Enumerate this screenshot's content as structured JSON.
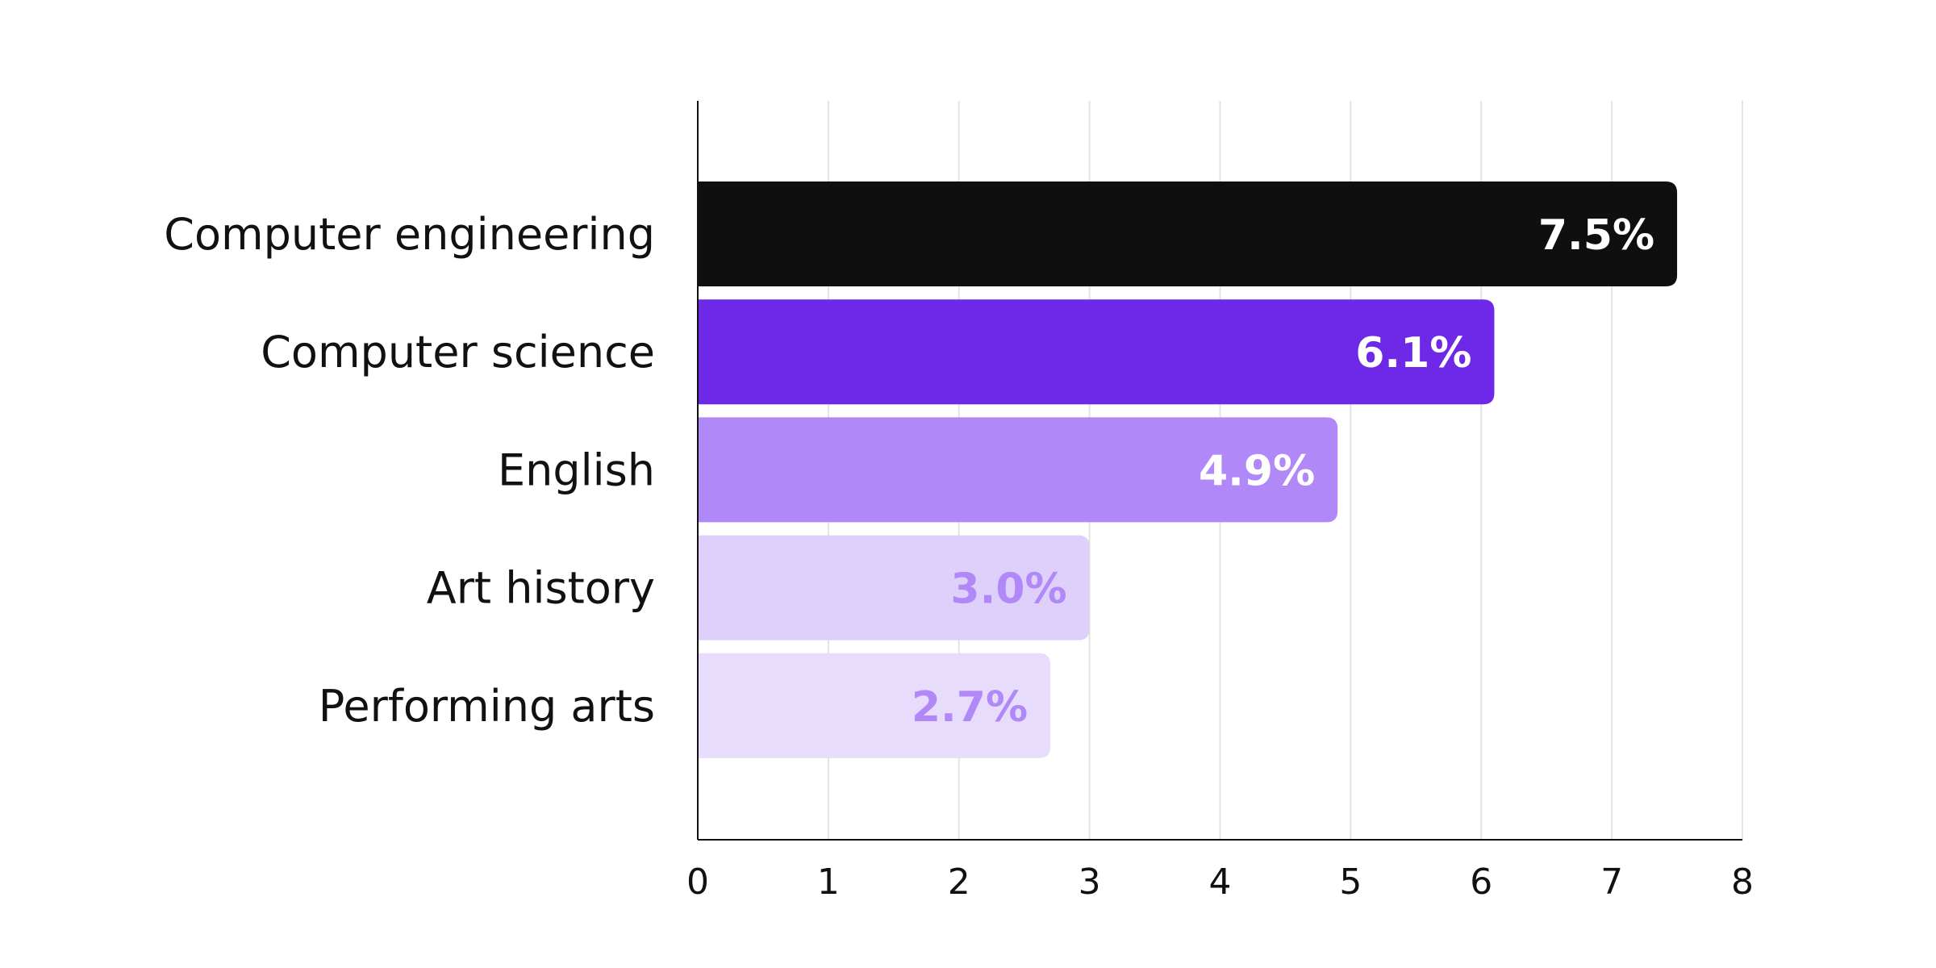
{
  "chart_data": {
    "type": "bar",
    "orientation": "horizontal",
    "categories": [
      "Computer engineering",
      "Computer science",
      "English",
      "Art history",
      "Performing arts"
    ],
    "values": [
      7.5,
      6.1,
      4.9,
      3.0,
      2.7
    ],
    "data_labels": [
      "7.5%",
      "6.1%",
      "4.9%",
      "3.0%",
      "2.7%"
    ],
    "bar_colors": [
      "#0f0f0f",
      "#6d28e8",
      "#b088f7",
      "#dfd0fb",
      "#e7dcfb"
    ],
    "label_colors": [
      "#ffffff",
      "#ffffff",
      "#ffffff",
      "#b088f7",
      "#b088f7"
    ],
    "xlim": [
      0,
      8
    ],
    "x_ticks": [
      "0",
      "1",
      "2",
      "3",
      "4",
      "5",
      "6",
      "7",
      "8"
    ],
    "grid": "vertical",
    "title": "",
    "xlabel": "",
    "ylabel": ""
  }
}
